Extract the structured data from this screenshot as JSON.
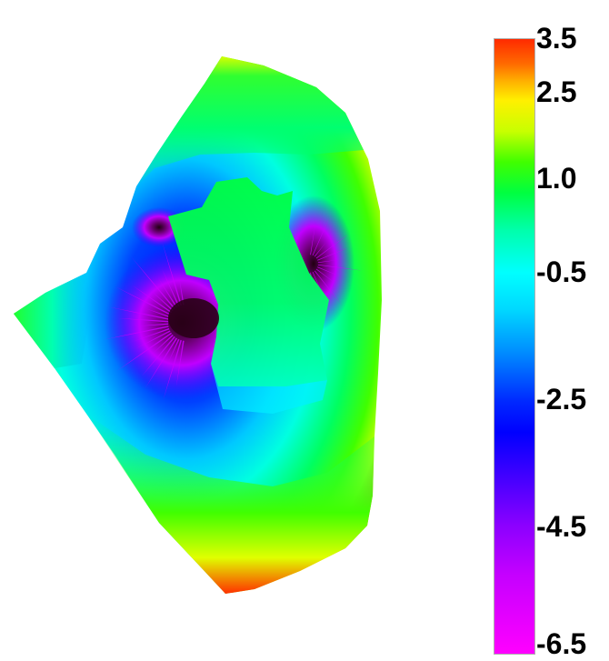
{
  "chart_data": {
    "type": "heatmap",
    "description_source": "3D surface colored by value, rendered with a rainbow colormap",
    "colorbar": {
      "vmin": -6.5,
      "vmax": 3.5,
      "ticks": [
        "3.5",
        "2.5",
        "1.0",
        "-0.5",
        "-2.5",
        "-4.5",
        "-6.5"
      ],
      "tick_values": [
        3.5,
        2.5,
        1.0,
        -0.5,
        -2.5,
        -4.5,
        -6.5
      ],
      "colormap": "rainbow (red high → magenta low)"
    },
    "colors": {
      "high": "#ff2a00",
      "mid_high": "#fff000",
      "mid": "#00ff40",
      "zero": "#00ffff",
      "low": "#0000ff",
      "min": "#ff00ff",
      "deep_min": "#3a0020"
    }
  }
}
